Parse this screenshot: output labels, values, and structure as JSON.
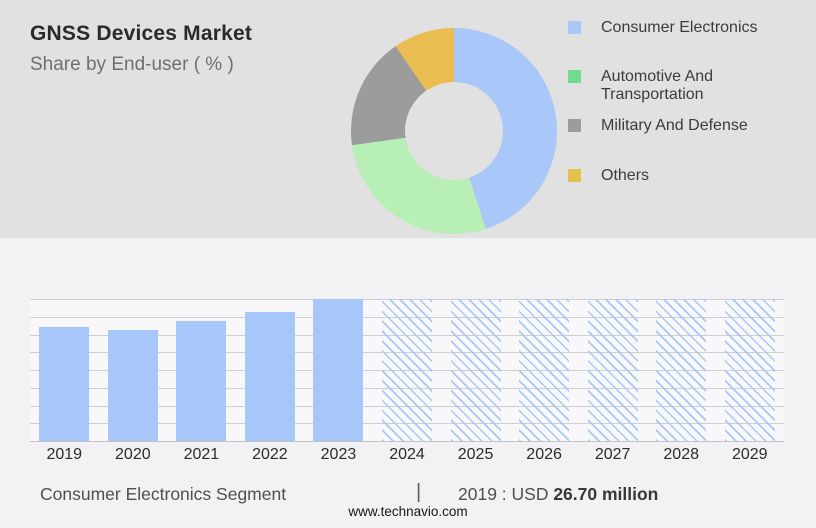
{
  "header": {
    "title": "GNSS Devices Market",
    "subtitle": "Share by End-user ( % )"
  },
  "footer": {
    "segment_label": "Consumer Electronics Segment",
    "separator": "|",
    "value_prefix": "2019 : USD ",
    "value_bold": "26.70 million"
  },
  "source": {
    "url": "www.technavio.com"
  },
  "chart_data": [
    {
      "type": "pie",
      "subtype": "donut",
      "title": "GNSS Devices Market — Share by End-user ( % )",
      "categories": [
        "Consumer Electronics",
        "Automotive And Transportation",
        "Military And Defense",
        "Others"
      ],
      "values_pct": [
        45.0,
        27.8,
        17.6,
        9.6
      ],
      "colors": [
        "#A9C7F9",
        "#B7EFB6",
        "#9C9C9C",
        "#E9BD52"
      ],
      "legend_colors": [
        "#A9C7F9",
        "#6FDD8C",
        "#9C9C9C",
        "#E2C14E"
      ],
      "legend_position": "right",
      "start_angle_deg": 0,
      "direction": "clockwise"
    },
    {
      "type": "bar",
      "categories": [
        "2019",
        "2020",
        "2021",
        "2022",
        "2023",
        "2024",
        "2025",
        "2026",
        "2027",
        "2028",
        "2029"
      ],
      "values_index_2023_100": [
        80.0,
        77.9,
        84.7,
        90.8,
        100,
        100,
        100,
        100,
        100,
        100,
        100
      ],
      "actual_years": [
        "2019",
        "2020",
        "2021",
        "2022",
        "2023"
      ],
      "forecast_years": [
        "2024",
        "2025",
        "2026",
        "2027",
        "2028",
        "2029"
      ],
      "forecast_style": "diagonal-hatch",
      "known_point": "Consumer Electronics Segment, 2019 : USD 26.70 million",
      "ylabel": "",
      "ylim_index": [
        0,
        100
      ],
      "gridline_count": 9,
      "grid": true,
      "bar_color": "#A7C7FA",
      "hatch_color": "#A9C7F4"
    }
  ]
}
